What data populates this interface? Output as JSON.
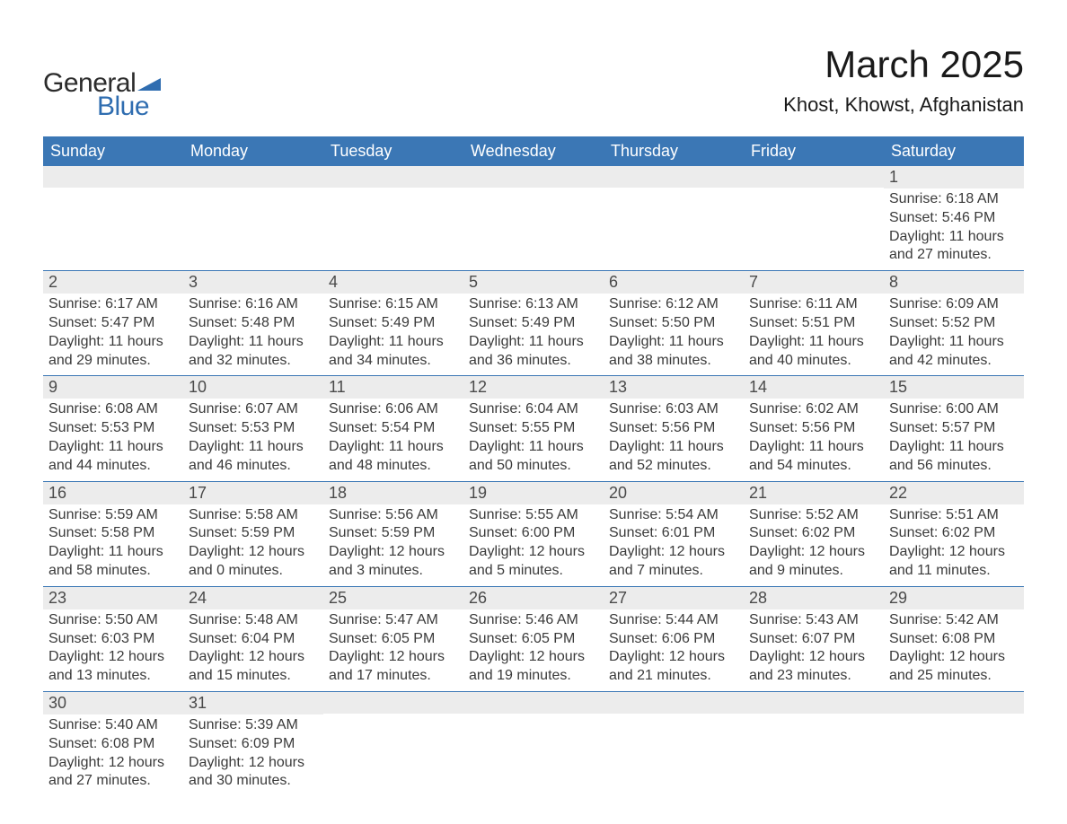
{
  "brand": {
    "text_general": "General",
    "text_blue": "Blue",
    "shape_color": "#2f6db0",
    "text_color_dark": "#2b2b2b"
  },
  "header": {
    "month_title": "March 2025",
    "location": "Khost, Khowst, Afghanistan",
    "title_fontsize": 42,
    "location_fontsize": 22
  },
  "colors": {
    "header_bg": "#3b77b5",
    "header_text": "#ffffff",
    "daynum_bg": "#ececec",
    "daynum_text": "#4a4a4a",
    "body_text": "#3a3a3a",
    "row_divider": "#3b77b5",
    "page_bg": "#ffffff"
  },
  "fonts": {
    "family": "Arial",
    "header_cell_size": 18,
    "daynum_size": 18,
    "body_size": 16
  },
  "day_headers": [
    "Sunday",
    "Monday",
    "Tuesday",
    "Wednesday",
    "Thursday",
    "Friday",
    "Saturday"
  ],
  "weeks": [
    [
      {
        "day": "",
        "sunrise": "",
        "sunset": "",
        "daylight1": "",
        "daylight2": ""
      },
      {
        "day": "",
        "sunrise": "",
        "sunset": "",
        "daylight1": "",
        "daylight2": ""
      },
      {
        "day": "",
        "sunrise": "",
        "sunset": "",
        "daylight1": "",
        "daylight2": ""
      },
      {
        "day": "",
        "sunrise": "",
        "sunset": "",
        "daylight1": "",
        "daylight2": ""
      },
      {
        "day": "",
        "sunrise": "",
        "sunset": "",
        "daylight1": "",
        "daylight2": ""
      },
      {
        "day": "",
        "sunrise": "",
        "sunset": "",
        "daylight1": "",
        "daylight2": ""
      },
      {
        "day": "1",
        "sunrise": "Sunrise: 6:18 AM",
        "sunset": "Sunset: 5:46 PM",
        "daylight1": "Daylight: 11 hours",
        "daylight2": "and 27 minutes."
      }
    ],
    [
      {
        "day": "2",
        "sunrise": "Sunrise: 6:17 AM",
        "sunset": "Sunset: 5:47 PM",
        "daylight1": "Daylight: 11 hours",
        "daylight2": "and 29 minutes."
      },
      {
        "day": "3",
        "sunrise": "Sunrise: 6:16 AM",
        "sunset": "Sunset: 5:48 PM",
        "daylight1": "Daylight: 11 hours",
        "daylight2": "and 32 minutes."
      },
      {
        "day": "4",
        "sunrise": "Sunrise: 6:15 AM",
        "sunset": "Sunset: 5:49 PM",
        "daylight1": "Daylight: 11 hours",
        "daylight2": "and 34 minutes."
      },
      {
        "day": "5",
        "sunrise": "Sunrise: 6:13 AM",
        "sunset": "Sunset: 5:49 PM",
        "daylight1": "Daylight: 11 hours",
        "daylight2": "and 36 minutes."
      },
      {
        "day": "6",
        "sunrise": "Sunrise: 6:12 AM",
        "sunset": "Sunset: 5:50 PM",
        "daylight1": "Daylight: 11 hours",
        "daylight2": "and 38 minutes."
      },
      {
        "day": "7",
        "sunrise": "Sunrise: 6:11 AM",
        "sunset": "Sunset: 5:51 PM",
        "daylight1": "Daylight: 11 hours",
        "daylight2": "and 40 minutes."
      },
      {
        "day": "8",
        "sunrise": "Sunrise: 6:09 AM",
        "sunset": "Sunset: 5:52 PM",
        "daylight1": "Daylight: 11 hours",
        "daylight2": "and 42 minutes."
      }
    ],
    [
      {
        "day": "9",
        "sunrise": "Sunrise: 6:08 AM",
        "sunset": "Sunset: 5:53 PM",
        "daylight1": "Daylight: 11 hours",
        "daylight2": "and 44 minutes."
      },
      {
        "day": "10",
        "sunrise": "Sunrise: 6:07 AM",
        "sunset": "Sunset: 5:53 PM",
        "daylight1": "Daylight: 11 hours",
        "daylight2": "and 46 minutes."
      },
      {
        "day": "11",
        "sunrise": "Sunrise: 6:06 AM",
        "sunset": "Sunset: 5:54 PM",
        "daylight1": "Daylight: 11 hours",
        "daylight2": "and 48 minutes."
      },
      {
        "day": "12",
        "sunrise": "Sunrise: 6:04 AM",
        "sunset": "Sunset: 5:55 PM",
        "daylight1": "Daylight: 11 hours",
        "daylight2": "and 50 minutes."
      },
      {
        "day": "13",
        "sunrise": "Sunrise: 6:03 AM",
        "sunset": "Sunset: 5:56 PM",
        "daylight1": "Daylight: 11 hours",
        "daylight2": "and 52 minutes."
      },
      {
        "day": "14",
        "sunrise": "Sunrise: 6:02 AM",
        "sunset": "Sunset: 5:56 PM",
        "daylight1": "Daylight: 11 hours",
        "daylight2": "and 54 minutes."
      },
      {
        "day": "15",
        "sunrise": "Sunrise: 6:00 AM",
        "sunset": "Sunset: 5:57 PM",
        "daylight1": "Daylight: 11 hours",
        "daylight2": "and 56 minutes."
      }
    ],
    [
      {
        "day": "16",
        "sunrise": "Sunrise: 5:59 AM",
        "sunset": "Sunset: 5:58 PM",
        "daylight1": "Daylight: 11 hours",
        "daylight2": "and 58 minutes."
      },
      {
        "day": "17",
        "sunrise": "Sunrise: 5:58 AM",
        "sunset": "Sunset: 5:59 PM",
        "daylight1": "Daylight: 12 hours",
        "daylight2": "and 0 minutes."
      },
      {
        "day": "18",
        "sunrise": "Sunrise: 5:56 AM",
        "sunset": "Sunset: 5:59 PM",
        "daylight1": "Daylight: 12 hours",
        "daylight2": "and 3 minutes."
      },
      {
        "day": "19",
        "sunrise": "Sunrise: 5:55 AM",
        "sunset": "Sunset: 6:00 PM",
        "daylight1": "Daylight: 12 hours",
        "daylight2": "and 5 minutes."
      },
      {
        "day": "20",
        "sunrise": "Sunrise: 5:54 AM",
        "sunset": "Sunset: 6:01 PM",
        "daylight1": "Daylight: 12 hours",
        "daylight2": "and 7 minutes."
      },
      {
        "day": "21",
        "sunrise": "Sunrise: 5:52 AM",
        "sunset": "Sunset: 6:02 PM",
        "daylight1": "Daylight: 12 hours",
        "daylight2": "and 9 minutes."
      },
      {
        "day": "22",
        "sunrise": "Sunrise: 5:51 AM",
        "sunset": "Sunset: 6:02 PM",
        "daylight1": "Daylight: 12 hours",
        "daylight2": "and 11 minutes."
      }
    ],
    [
      {
        "day": "23",
        "sunrise": "Sunrise: 5:50 AM",
        "sunset": "Sunset: 6:03 PM",
        "daylight1": "Daylight: 12 hours",
        "daylight2": "and 13 minutes."
      },
      {
        "day": "24",
        "sunrise": "Sunrise: 5:48 AM",
        "sunset": "Sunset: 6:04 PM",
        "daylight1": "Daylight: 12 hours",
        "daylight2": "and 15 minutes."
      },
      {
        "day": "25",
        "sunrise": "Sunrise: 5:47 AM",
        "sunset": "Sunset: 6:05 PM",
        "daylight1": "Daylight: 12 hours",
        "daylight2": "and 17 minutes."
      },
      {
        "day": "26",
        "sunrise": "Sunrise: 5:46 AM",
        "sunset": "Sunset: 6:05 PM",
        "daylight1": "Daylight: 12 hours",
        "daylight2": "and 19 minutes."
      },
      {
        "day": "27",
        "sunrise": "Sunrise: 5:44 AM",
        "sunset": "Sunset: 6:06 PM",
        "daylight1": "Daylight: 12 hours",
        "daylight2": "and 21 minutes."
      },
      {
        "day": "28",
        "sunrise": "Sunrise: 5:43 AM",
        "sunset": "Sunset: 6:07 PM",
        "daylight1": "Daylight: 12 hours",
        "daylight2": "and 23 minutes."
      },
      {
        "day": "29",
        "sunrise": "Sunrise: 5:42 AM",
        "sunset": "Sunset: 6:08 PM",
        "daylight1": "Daylight: 12 hours",
        "daylight2": "and 25 minutes."
      }
    ],
    [
      {
        "day": "30",
        "sunrise": "Sunrise: 5:40 AM",
        "sunset": "Sunset: 6:08 PM",
        "daylight1": "Daylight: 12 hours",
        "daylight2": "and 27 minutes."
      },
      {
        "day": "31",
        "sunrise": "Sunrise: 5:39 AM",
        "sunset": "Sunset: 6:09 PM",
        "daylight1": "Daylight: 12 hours",
        "daylight2": "and 30 minutes."
      },
      {
        "day": "",
        "sunrise": "",
        "sunset": "",
        "daylight1": "",
        "daylight2": ""
      },
      {
        "day": "",
        "sunrise": "",
        "sunset": "",
        "daylight1": "",
        "daylight2": ""
      },
      {
        "day": "",
        "sunrise": "",
        "sunset": "",
        "daylight1": "",
        "daylight2": ""
      },
      {
        "day": "",
        "sunrise": "",
        "sunset": "",
        "daylight1": "",
        "daylight2": ""
      },
      {
        "day": "",
        "sunrise": "",
        "sunset": "",
        "daylight1": "",
        "daylight2": ""
      }
    ]
  ]
}
